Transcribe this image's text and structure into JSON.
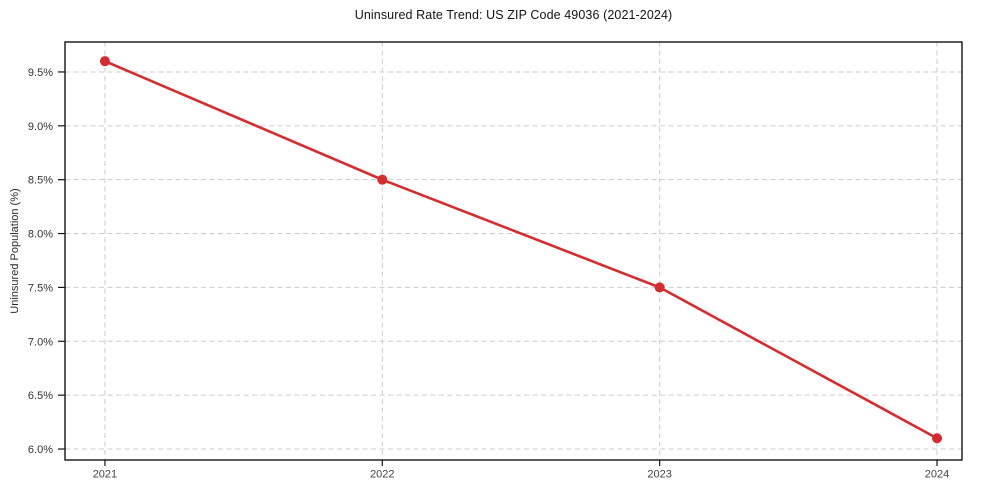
{
  "chart_data": {
    "type": "line",
    "title": "Uninsured Rate Trend: US ZIP Code 49036 (2021-2024)",
    "xlabel": "",
    "ylabel": "Uninsured Population (%)",
    "categories": [
      "2021",
      "2022",
      "2023",
      "2024"
    ],
    "x": [
      2021,
      2022,
      2023,
      2024
    ],
    "series": [
      {
        "name": "Uninsured rate",
        "values": [
          9.6,
          8.5,
          7.5,
          6.1
        ]
      }
    ],
    "yticks": [
      6.0,
      6.5,
      7.0,
      7.5,
      8.0,
      8.5,
      9.0,
      9.5
    ],
    "ytick_labels": [
      "6.0%",
      "6.5%",
      "7.0%",
      "7.5%",
      "8.0%",
      "8.5%",
      "9.0%",
      "9.5%"
    ],
    "xlim": [
      2020.856,
      2024.09
    ],
    "ylim": [
      5.898,
      9.778
    ],
    "grid": true,
    "legend": "none",
    "line_color": "#d62b2f",
    "marker": "circle",
    "marker_radius": 5,
    "line_width": 2.6
  }
}
